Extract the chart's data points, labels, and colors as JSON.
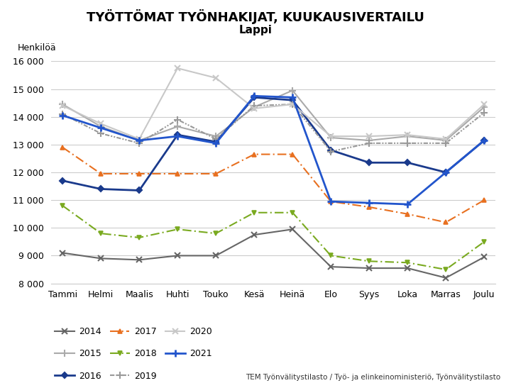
{
  "title": "TYÖTTÖMAT TYÖNHAKIJAT, KUUKAUSIVERTAILU",
  "subtitle": "Lappi",
  "ylabel": "Henkilöä",
  "xlabel_months": [
    "Tammi",
    "Helmi",
    "Maalis",
    "Huhti",
    "Touko",
    "Kesä",
    "Heinä",
    "Elo",
    "Syys",
    "Loka",
    "Marras",
    "Joulu"
  ],
  "footnote": "TEM Työnvälitystilasto / Työ- ja elinkeinoministeriö, Työnvälitystilasto",
  "ylim": [
    8000,
    16000
  ],
  "yticks": [
    8000,
    9000,
    10000,
    11000,
    12000,
    13000,
    14000,
    15000,
    16000
  ],
  "series": {
    "2014": {
      "values": [
        9100,
        8900,
        8850,
        9000,
        9000,
        9750,
        9950,
        8600,
        8550,
        8550,
        8200,
        8950
      ]
    },
    "2015": {
      "values": [
        14450,
        13650,
        13150,
        13650,
        13300,
        14350,
        14950,
        13250,
        13150,
        13300,
        13150,
        14350
      ]
    },
    "2016": {
      "values": [
        11700,
        11400,
        11350,
        13350,
        13100,
        14700,
        14600,
        12800,
        12350,
        12350,
        12000,
        13150
      ]
    },
    "2017": {
      "values": [
        12900,
        11950,
        11950,
        11950,
        11950,
        12650,
        12650,
        10950,
        10750,
        10500,
        10200,
        11000
      ]
    },
    "2018": {
      "values": [
        10800,
        9800,
        9650,
        9950,
        9800,
        10550,
        10550,
        9000,
        8800,
        8750,
        8500,
        9500
      ]
    },
    "2019": {
      "values": [
        14100,
        13400,
        13050,
        13900,
        13200,
        14400,
        14450,
        12750,
        13050,
        13050,
        13050,
        14150
      ]
    },
    "2020": {
      "values": [
        14400,
        13750,
        13200,
        15750,
        15400,
        14300,
        14450,
        13300,
        13300,
        13350,
        13200,
        14450
      ]
    },
    "2021": {
      "values": [
        14050,
        13600,
        13150,
        13300,
        13050,
        14750,
        14700,
        10950,
        10900,
        10850,
        12000,
        13150
      ]
    }
  },
  "line_colors": {
    "2014": "#666666",
    "2015": "#aaaaaa",
    "2016": "#1a3a8c",
    "2017": "#e87020",
    "2018": "#7aaa20",
    "2019": "#999999",
    "2020": "#c8c8c8",
    "2021": "#2255cc"
  },
  "linewidths": {
    "2014": 1.5,
    "2015": 1.5,
    "2016": 2.0,
    "2017": 1.5,
    "2018": 1.5,
    "2019": 1.5,
    "2020": 1.5,
    "2021": 2.0
  },
  "background_color": "#ffffff",
  "grid_color": "#cccccc"
}
